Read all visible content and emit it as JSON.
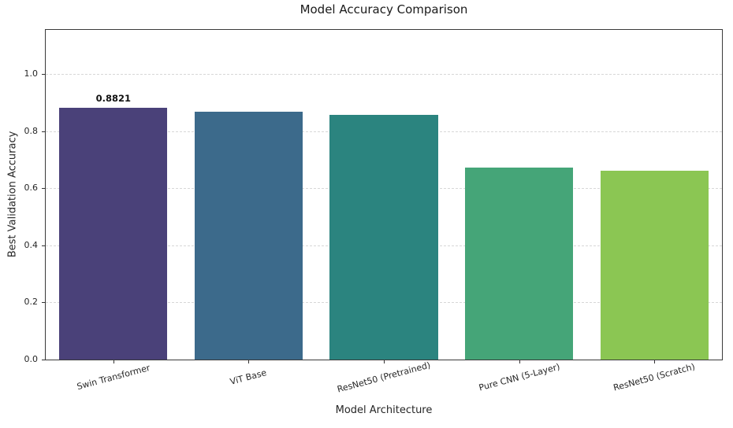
{
  "chart_data": {
    "type": "bar",
    "title": "Model Accuracy Comparison",
    "xlabel": "Model Architecture",
    "ylabel": "Best Validation Accuracy",
    "categories": [
      "Swin Transformer",
      "ViT Base",
      "ResNet50 (Pretrained)",
      "Pure CNN (5-Layer)",
      "ResNet50 (Scratch)"
    ],
    "values": [
      0.8821,
      0.867,
      0.856,
      0.672,
      0.662
    ],
    "value_labels": [
      "0.8821",
      "",
      "",
      "",
      ""
    ],
    "bar_colors": [
      "#4a4179",
      "#3c6a8b",
      "#2b847f",
      "#45a578",
      "#8bc653"
    ],
    "yticks": [
      0.0,
      0.2,
      0.4,
      0.6,
      0.8,
      1.0
    ],
    "ytick_labels": [
      "0.0",
      "0.2",
      "0.4",
      "0.6",
      "0.8",
      "1.0"
    ],
    "ylim": [
      0,
      1.155
    ],
    "grid": "horizontal-dashed",
    "grid_color": "#d7d7d7",
    "legend": "none"
  }
}
